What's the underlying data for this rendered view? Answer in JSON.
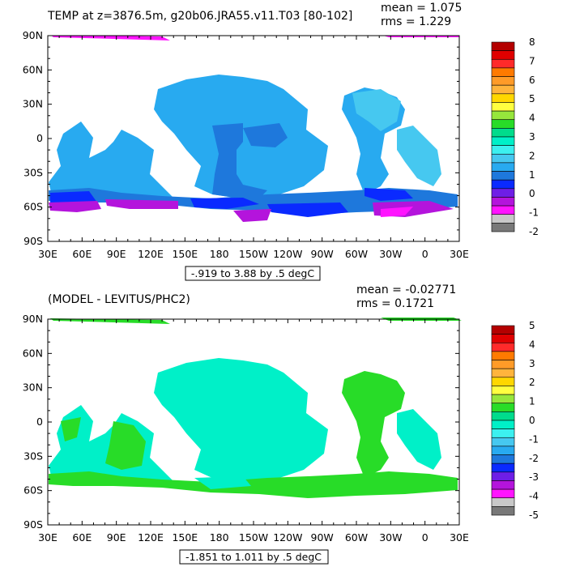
{
  "chart_data": [
    {
      "type": "heatmap",
      "title": "TEMP at z=3876.5m, g20b06.JRA55.v11.T03 [80-102]",
      "stats": {
        "mean": "mean = 1.075",
        "rms": "rms = 1.229"
      },
      "range_note": "-.919 to 3.88 by .5 degC",
      "x_ticks": [
        "30E",
        "60E",
        "90E",
        "120E",
        "150E",
        "180",
        "150W",
        "120W",
        "90W",
        "60W",
        "30W",
        "0",
        "30E"
      ],
      "y_ticks": [
        "90N",
        "60N",
        "30N",
        "0",
        "30S",
        "60S",
        "90S"
      ],
      "colorbar": {
        "labels": [
          "8",
          "7",
          "6",
          "5",
          "4",
          "3",
          "2",
          "1",
          "0",
          "-1",
          "-2"
        ],
        "colors": [
          "#b40000",
          "#e00000",
          "#ff2a2a",
          "#ff7a00",
          "#ff9b28",
          "#ffb43c",
          "#ffd700",
          "#ffff40",
          "#96e63c",
          "#28dc28",
          "#00dc8c",
          "#00f0c8",
          "#3cf0f0",
          "#46c8f0",
          "#28aaf0",
          "#1e78dc",
          "#0a2aff",
          "#6e1ee6",
          "#b414dc",
          "#ff14ff",
          "#c8c8c8",
          "#787878"
        ],
        "min": -2,
        "max": 8
      },
      "regions": [
        {
          "color": "#28aaf0",
          "note": "widespread 1 to 1.5 degC"
        },
        {
          "color": "#1e78dc",
          "note": "0.5 to 1 degC"
        },
        {
          "color": "#0a2aff",
          "note": "0 to 0.5 degC"
        },
        {
          "color": "#b414dc",
          "note": "-0.5 to 0 degC"
        }
      ]
    },
    {
      "type": "heatmap",
      "title": "(MODEL - LEVITUS/PHC2)",
      "stats": {
        "mean": "mean = -0.02771",
        "rms": "rms = 0.1721"
      },
      "range_note": "-1.851 to 1.011 by .5 degC",
      "x_ticks": [
        "30E",
        "60E",
        "90E",
        "120E",
        "150E",
        "180",
        "150W",
        "120W",
        "90W",
        "60W",
        "30W",
        "0",
        "30E"
      ],
      "y_ticks": [
        "90N",
        "60N",
        "30N",
        "0",
        "30S",
        "60S",
        "90S"
      ],
      "colorbar": {
        "labels": [
          "5",
          "4",
          "3",
          "2",
          "1",
          "0",
          "-1",
          "-2",
          "-3",
          "-4",
          "-5"
        ],
        "colors": [
          "#b40000",
          "#e00000",
          "#ff2a2a",
          "#ff7a00",
          "#ff9b28",
          "#ffb43c",
          "#ffd700",
          "#ffff40",
          "#96e63c",
          "#28dc28",
          "#00dc8c",
          "#00f0c8",
          "#3cf0f0",
          "#46c8f0",
          "#28aaf0",
          "#1e78dc",
          "#0a2aff",
          "#6e1ee6",
          "#b414dc",
          "#ff14ff",
          "#c8c8c8",
          "#787878"
        ],
        "min": -5,
        "max": 5
      },
      "regions": [
        {
          "color": "#00f0c8",
          "note": "widespread 0 to -0.5 degC"
        },
        {
          "color": "#28dc28",
          "note": "0 to 0.5 degC"
        }
      ]
    }
  ]
}
